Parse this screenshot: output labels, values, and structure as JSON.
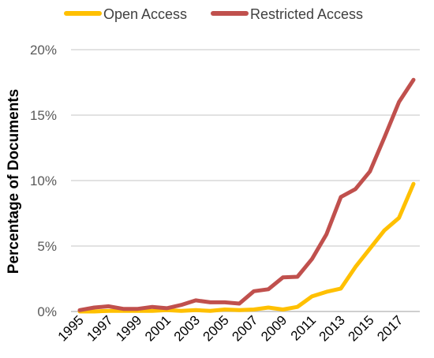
{
  "chart_data": {
    "type": "line",
    "ylabel": "Percentage of Documents",
    "ylim": [
      0,
      20
    ],
    "y_ticks": [
      "0%",
      "5%",
      "10%",
      "15%",
      "20%"
    ],
    "y_tick_values": [
      0,
      5,
      10,
      15,
      20
    ],
    "x": [
      1995,
      1996,
      1997,
      1998,
      1999,
      2000,
      2001,
      2002,
      2003,
      2004,
      2005,
      2006,
      2007,
      2008,
      2009,
      2010,
      2011,
      2012,
      2013,
      2014,
      2015,
      2016,
      2017,
      2018
    ],
    "x_tick_labels": [
      "1995",
      "1997",
      "1999",
      "2001",
      "2003",
      "2005",
      "2007",
      "2009",
      "2011",
      "2013",
      "2015",
      "2017"
    ],
    "grid": "horizontal",
    "legend_position": "top",
    "series": [
      {
        "name": "Open Access",
        "color": "#FFC000",
        "values": [
          0.0,
          0.0,
          0.05,
          0.05,
          0.05,
          0.05,
          0.1,
          0.05,
          0.1,
          0.05,
          0.15,
          0.1,
          0.15,
          0.3,
          0.15,
          0.35,
          1.15,
          1.5,
          1.75,
          3.4,
          4.8,
          6.2,
          7.15,
          9.75
        ]
      },
      {
        "name": "Restricted Access",
        "color": "#C0504D",
        "values": [
          0.1,
          0.3,
          0.4,
          0.2,
          0.2,
          0.35,
          0.25,
          0.5,
          0.85,
          0.7,
          0.7,
          0.6,
          1.55,
          1.7,
          2.6,
          2.65,
          4.0,
          5.9,
          8.75,
          9.35,
          10.7,
          13.3,
          16.0,
          17.7
        ]
      }
    ]
  }
}
